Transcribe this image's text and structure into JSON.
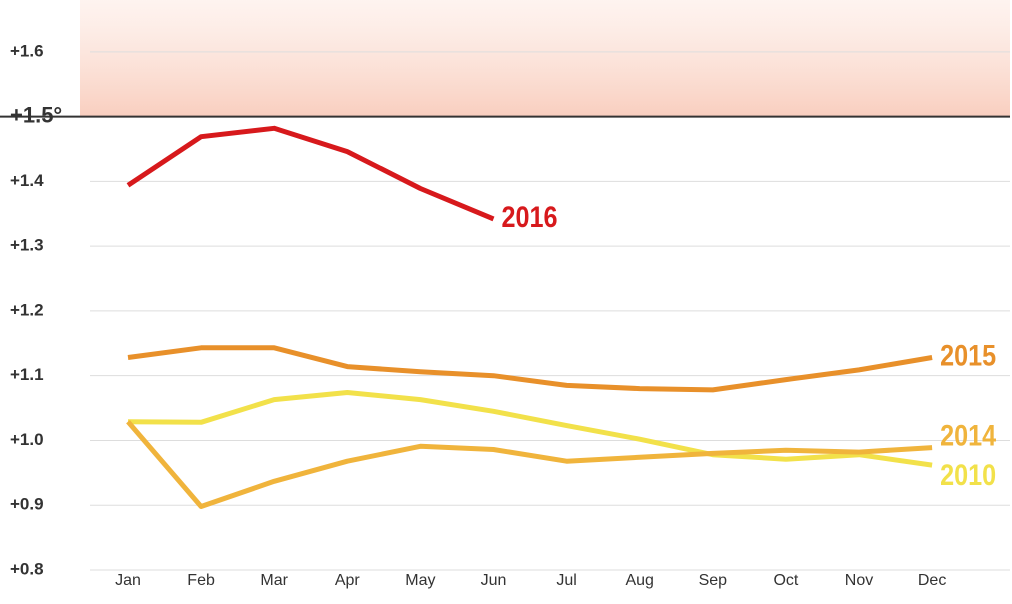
{
  "chart_data": {
    "type": "line",
    "categories": [
      "Jan",
      "Feb",
      "Mar",
      "Apr",
      "May",
      "Jun",
      "Jul",
      "Aug",
      "Sep",
      "Oct",
      "Nov",
      "Dec"
    ],
    "series": [
      {
        "name": "2016",
        "color": "#d7191c",
        "values": [
          1.394,
          1.469,
          1.482,
          1.446,
          1.389,
          1.342,
          null,
          null,
          null,
          null,
          null,
          null
        ]
      },
      {
        "name": "2015",
        "color": "#e8902a",
        "values": [
          1.128,
          1.143,
          1.143,
          1.114,
          1.106,
          1.1,
          1.085,
          1.08,
          1.078,
          1.094,
          1.109,
          1.128
        ]
      },
      {
        "name": "2014",
        "color": "#f0b43c",
        "values": [
          1.029,
          0.898,
          0.937,
          0.968,
          0.991,
          0.986,
          0.968,
          0.974,
          0.98,
          0.985,
          0.982,
          0.989
        ]
      },
      {
        "name": "2010",
        "color": "#f2e14a",
        "values": [
          1.029,
          1.028,
          1.063,
          1.074,
          1.063,
          1.045,
          1.023,
          1.002,
          0.978,
          0.971,
          0.978,
          0.962
        ]
      }
    ],
    "ylim": [
      0.8,
      1.68
    ],
    "yticks": [
      {
        "value": 0.8,
        "label": "+0.8"
      },
      {
        "value": 0.9,
        "label": "+0.9"
      },
      {
        "value": 1.0,
        "label": "+1.0"
      },
      {
        "value": 1.1,
        "label": "+1.1"
      },
      {
        "value": 1.2,
        "label": "+1.2"
      },
      {
        "value": 1.3,
        "label": "+1.3"
      },
      {
        "value": 1.4,
        "label": "+1.4"
      },
      {
        "value": 1.5,
        "label": "+1.5°"
      },
      {
        "value": 1.6,
        "label": "+1.6"
      }
    ],
    "threshold": 1.5,
    "grid": true
  }
}
